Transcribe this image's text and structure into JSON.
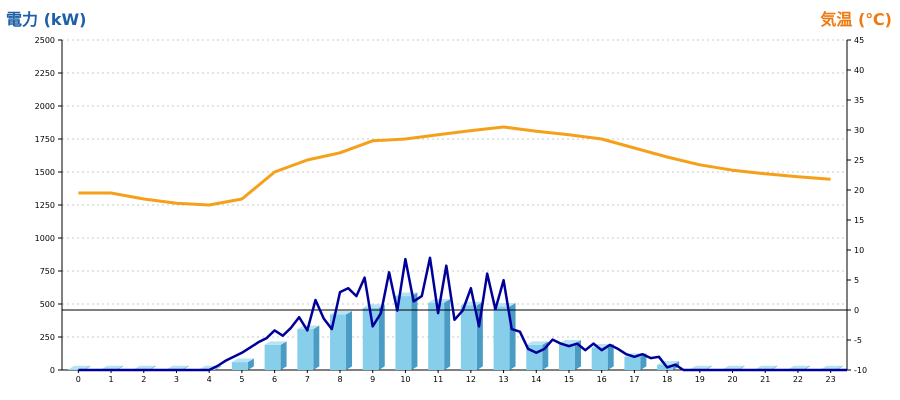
{
  "chart_data": {
    "type": "bar",
    "left_axis_title": "電力 (kW)",
    "right_axis_title": "気温 (℃)",
    "categories": [
      "0",
      "1",
      "2",
      "3",
      "4",
      "5",
      "6",
      "7",
      "8",
      "9",
      "10",
      "11",
      "12",
      "13",
      "14",
      "15",
      "16",
      "17",
      "18",
      "19",
      "20",
      "21",
      "22",
      "23"
    ],
    "left_ylim": [
      0,
      2500
    ],
    "left_ticks": [
      "0",
      "250",
      "500",
      "750",
      "1000",
      "1250",
      "1500",
      "1750",
      "2000",
      "2250",
      "2500"
    ],
    "right_ylim": [
      -10,
      45
    ],
    "right_ticks": [
      "-10",
      "-5",
      "0",
      "5",
      "10",
      "15",
      "20",
      "25",
      "30",
      "35",
      "40",
      "45"
    ],
    "grid": true,
    "reference_line": {
      "axis": "right",
      "value": 0
    },
    "colors": {
      "bar": "#87ceeb",
      "bar_side": "#4a9cc4",
      "bar_top": "#b8e3f4",
      "power_line": "#000099",
      "temp_line": "#f5a01a",
      "left_title": "#1f5fa6",
      "right_title": "#ef7a12"
    },
    "series": [
      {
        "kind": "bar",
        "axis": "left",
        "values": [
          5,
          5,
          5,
          5,
          5,
          60,
          190,
          310,
          420,
          470,
          560,
          510,
          490,
          480,
          190,
          200,
          170,
          100,
          40,
          5,
          5,
          5,
          5,
          5
        ]
      },
      {
        "kind": "line",
        "axis": "left",
        "x": [
          0,
          0.5,
          1,
          1.5,
          2,
          2.5,
          3,
          3.5,
          4,
          4.25,
          4.5,
          4.75,
          5,
          5.25,
          5.5,
          5.75,
          6,
          6.25,
          6.5,
          6.75,
          7,
          7.25,
          7.5,
          7.75,
          8,
          8.25,
          8.5,
          8.75,
          9,
          9.25,
          9.5,
          9.75,
          10,
          10.25,
          10.5,
          10.75,
          11,
          11.25,
          11.5,
          11.75,
          12,
          12.25,
          12.5,
          12.75,
          13,
          13.25,
          13.5,
          13.75,
          14,
          14.25,
          14.5,
          14.75,
          15,
          15.25,
          15.5,
          15.75,
          16,
          16.25,
          16.5,
          16.75,
          17,
          17.25,
          17.5,
          17.75,
          18,
          18.25,
          18.5,
          19,
          19.5,
          20,
          20.5,
          21,
          21.5,
          22,
          22.5,
          23,
          23.5
        ],
        "values": [
          0,
          0,
          0,
          0,
          0,
          0,
          0,
          0,
          0,
          30,
          70,
          100,
          130,
          170,
          210,
          240,
          300,
          260,
          320,
          400,
          300,
          530,
          390,
          310,
          590,
          620,
          560,
          700,
          330,
          430,
          740,
          450,
          840,
          520,
          560,
          850,
          430,
          790,
          380,
          450,
          620,
          330,
          730,
          460,
          680,
          310,
          290,
          160,
          130,
          160,
          230,
          200,
          180,
          200,
          150,
          200,
          150,
          190,
          160,
          120,
          100,
          120,
          90,
          100,
          20,
          40,
          0,
          0,
          0,
          0,
          0,
          0,
          0,
          0,
          0,
          0,
          0
        ]
      },
      {
        "kind": "line",
        "axis": "right",
        "x": [
          0,
          1,
          2,
          3,
          4,
          5,
          6,
          7,
          8,
          9,
          10,
          11,
          12,
          13,
          14,
          15,
          16,
          17,
          18,
          19,
          20,
          21,
          22,
          23
        ],
        "values": [
          19.5,
          19.5,
          18.5,
          17.8,
          17.5,
          18.5,
          23,
          25,
          26.2,
          28.2,
          28.5,
          29.2,
          29.9,
          30.5,
          29.8,
          29.2,
          28.5,
          27,
          25.5,
          24.2,
          23.3,
          22.7,
          22.2,
          21.8
        ]
      }
    ]
  }
}
